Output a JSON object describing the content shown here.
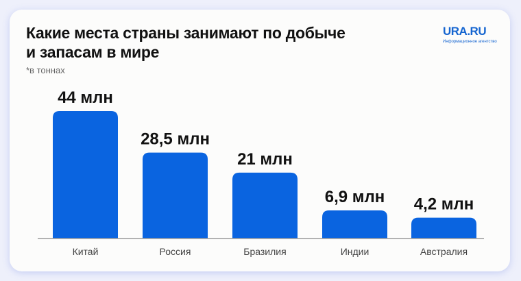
{
  "logo": {
    "name": "URA.RU",
    "tagline": "Информационное агентство"
  },
  "chart_data": {
    "type": "bar",
    "title": "Какие места страны занимают по добыче и запасам в мире",
    "title_lines": [
      "Какие места страны занимают по добыче",
      "и запасам в мире"
    ],
    "subtitle": "*в тоннах",
    "categories": [
      "Китай",
      "Россия",
      "Бразилия",
      "Индии",
      "Австралия"
    ],
    "values": [
      44,
      28.5,
      21,
      6.9,
      4.2
    ],
    "data_labels": [
      "44 млн",
      "28,5 млн",
      "21 млн",
      "6,9 млн",
      "4,2 млн"
    ],
    "unit": "млн т",
    "grid": false,
    "colors": {
      "bar": "#0a64e0",
      "axis": "#9a9a9a",
      "label": "#111111"
    }
  }
}
